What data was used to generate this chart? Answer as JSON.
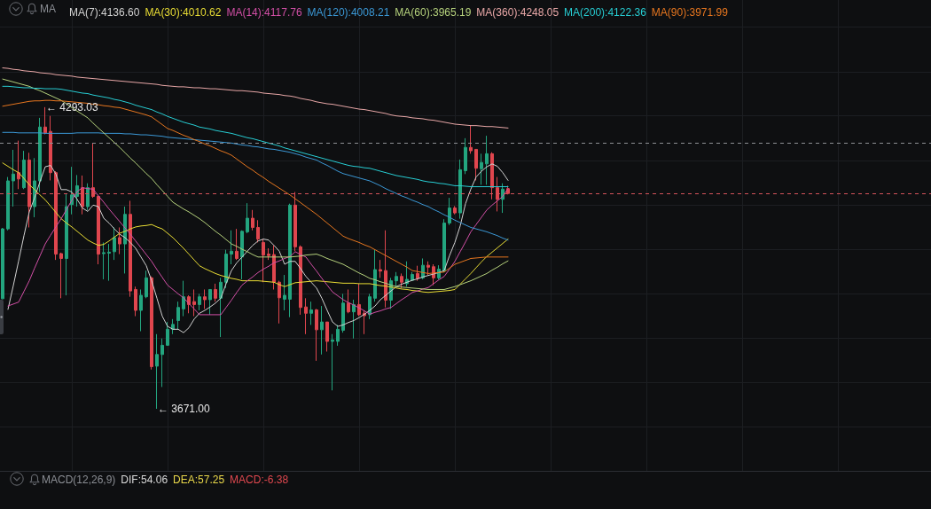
{
  "chart_data": {
    "type": "candlestick",
    "categories": [
      null,
      null,
      null,
      null,
      null,
      null,
      null,
      null,
      null,
      null,
      null,
      null,
      null,
      null,
      null,
      null,
      null,
      null,
      null,
      null,
      null,
      null,
      null,
      null,
      null,
      null,
      null,
      null,
      null,
      null,
      null,
      null,
      null,
      null,
      null,
      null,
      null,
      null,
      null,
      null,
      null,
      null,
      null,
      null,
      null,
      null,
      null,
      null,
      null,
      null,
      null,
      null,
      null,
      null,
      null,
      null,
      null,
      null,
      null,
      null,
      null,
      null,
      null,
      null,
      null,
      null,
      null,
      null,
      null,
      null,
      null,
      null,
      null,
      null,
      null,
      null,
      null,
      null,
      null,
      null,
      null,
      null,
      null,
      null,
      null,
      null,
      null,
      null,
      null,
      null,
      null,
      null,
      null,
      null,
      null,
      null
    ],
    "ohlc": [
      [
        3898,
        4044,
        3897,
        4042
      ],
      [
        4042,
        4149,
        4039,
        4141
      ],
      [
        4141,
        4205,
        4088,
        4155
      ],
      [
        4158,
        4224,
        4124,
        4145
      ],
      [
        4127,
        4203,
        4124,
        4184
      ],
      [
        4184,
        4199,
        4045,
        4088
      ],
      [
        4088,
        4188,
        4066,
        4141
      ],
      [
        4141,
        4271,
        4118,
        4252
      ],
      [
        4252,
        4293.03,
        4237,
        4240
      ],
      [
        4243,
        4275,
        4142,
        4158
      ],
      [
        4158,
        4161,
        3978,
        3990
      ],
      [
        3991,
        3993,
        3899,
        3981
      ],
      [
        3981,
        4115,
        3905,
        4088
      ],
      [
        4092,
        4170,
        4072,
        4112
      ],
      [
        4109,
        4153,
        4088,
        4131
      ],
      [
        4127,
        4152,
        4072,
        4088
      ],
      [
        4088,
        4136,
        4081,
        4127
      ],
      [
        4127,
        4219,
        4106,
        4109
      ],
      [
        4109,
        4112,
        3969,
        3990
      ],
      [
        3991,
        4014,
        3938,
        3993
      ],
      [
        3992,
        4011,
        3935,
        3994
      ],
      [
        3995,
        4045,
        3978,
        4024
      ],
      [
        4024,
        4045,
        3990,
        4011
      ],
      [
        4011,
        4088,
        3950,
        4072
      ],
      [
        4072,
        4100,
        3902,
        3914
      ],
      [
        3917,
        3923,
        3862,
        3874
      ],
      [
        3874,
        3917,
        3831,
        3905
      ],
      [
        3902,
        3956,
        3899,
        3941
      ],
      [
        3941,
        3944,
        3752,
        3758
      ],
      [
        3759,
        3825,
        3671.0,
        3783
      ],
      [
        3783,
        3816,
        3716,
        3802
      ],
      [
        3802,
        3850,
        3801,
        3835
      ],
      [
        3835,
        3856,
        3825,
        3845
      ],
      [
        3853,
        3892,
        3835,
        3880
      ],
      [
        3877,
        3935,
        3862,
        3902
      ],
      [
        3902,
        3905,
        3868,
        3886
      ],
      [
        3892,
        3917,
        3862,
        3886
      ],
      [
        3886,
        3908,
        3874,
        3902
      ],
      [
        3902,
        3917,
        3877,
        3896
      ],
      [
        3896,
        3917,
        3865,
        3917
      ],
      [
        3917,
        3929,
        3892,
        3899
      ],
      [
        3899,
        3941,
        3819,
        3932
      ],
      [
        3932,
        3999,
        3920,
        3990
      ],
      [
        3990,
        4039,
        3969,
        3996
      ],
      [
        3996,
        4042,
        3978,
        3981
      ],
      [
        3984,
        4039,
        3938,
        4037
      ],
      [
        4036,
        4095,
        4033,
        4064
      ],
      [
        4064,
        4081,
        4039,
        4045
      ],
      [
        4045,
        4060,
        4014,
        4021
      ],
      [
        4014,
        4021,
        3932,
        3988
      ],
      [
        3990,
        4002,
        3978,
        3987
      ],
      [
        3989,
        4008,
        3917,
        3932
      ],
      [
        3932,
        3935,
        3847,
        3900
      ],
      [
        3897,
        3947,
        3874,
        3905
      ],
      [
        3897,
        4094,
        3860,
        4091
      ],
      [
        4091,
        4118,
        3996,
        4005
      ],
      [
        4005,
        4008,
        3865,
        3880
      ],
      [
        3881,
        3899,
        3825,
        3868
      ],
      [
        3868,
        3892,
        3844,
        3875
      ],
      [
        3875,
        3877,
        3770,
        3834
      ],
      [
        3834,
        3883,
        3783,
        3850
      ],
      [
        3850,
        3850,
        3789,
        3810
      ],
      [
        3810,
        3825,
        3709,
        3813
      ],
      [
        3810,
        3844,
        3801,
        3835
      ],
      [
        3833,
        3908,
        3828,
        3889
      ],
      [
        3889,
        3917,
        3868,
        3871
      ],
      [
        3871,
        3896,
        3816,
        3886
      ],
      [
        3886,
        3929,
        3862,
        3865
      ],
      [
        3868,
        3874,
        3825,
        3863
      ],
      [
        3865,
        3908,
        3856,
        3902
      ],
      [
        3899,
        3999,
        3892,
        3958
      ],
      [
        3958,
        3978,
        3941,
        3955
      ],
      [
        3956,
        4039,
        3880,
        3895
      ],
      [
        3895,
        3941,
        3877,
        3935
      ],
      [
        3935,
        3953,
        3923,
        3944
      ],
      [
        3944,
        3950,
        3920,
        3932
      ],
      [
        3929,
        3975,
        3923,
        3938
      ],
      [
        3936,
        3953,
        3935,
        3948
      ],
      [
        3950,
        3966,
        3935,
        3940
      ],
      [
        3941,
        3981,
        3938,
        3967
      ],
      [
        3967,
        3975,
        3947,
        3963
      ],
      [
        3964,
        3969,
        3926,
        3941
      ],
      [
        3941,
        3967,
        3938,
        3959
      ],
      [
        3956,
        4062,
        3953,
        4054
      ],
      [
        4054,
        4106,
        4050,
        4085
      ],
      [
        4085,
        4089,
        4072,
        4075
      ],
      [
        4075,
        4185,
        4063,
        4164
      ],
      [
        4162,
        4229,
        4155,
        4210
      ],
      [
        4210,
        4255,
        4197,
        4203
      ],
      [
        4206,
        4206,
        4142,
        4167
      ],
      [
        4166,
        4197,
        4133,
        4179
      ],
      [
        4176,
        4234,
        4133,
        4197
      ],
      [
        4197,
        4200,
        4103,
        4127
      ],
      [
        4127,
        4149,
        4078,
        4103
      ],
      [
        4103,
        4136,
        4075,
        4124
      ],
      [
        4125,
        4131,
        4113,
        4115
      ]
    ],
    "colors": [
      "#23a57f",
      "#23a57f",
      "#23a57f",
      "#e0464e",
      "#23a57f",
      "#e0464e",
      "#23a57f",
      "#23a57f",
      "#e0464e",
      "#e0464e",
      "#e0464e",
      "#e0464e",
      "#23a57f",
      "#23a57f",
      "#23a57f",
      "#e0464e",
      "#23a57f",
      "#e0464e",
      "#e0464e",
      "#23a57f",
      "#23a57f",
      "#23a57f",
      "#e0464e",
      "#23a57f",
      "#e0464e",
      "#e0464e",
      "#23a57f",
      "#23a57f",
      "#e0464e",
      "#23a57f",
      "#23a57f",
      "#23a57f",
      "#23a57f",
      "#23a57f",
      "#23a57f",
      "#e0464e",
      "#e0464e",
      "#23a57f",
      "#e0464e",
      "#23a57f",
      "#e0464e",
      "#23a57f",
      "#23a57f",
      "#23a57f",
      "#e0464e",
      "#23a57f",
      "#23a57f",
      "#e0464e",
      "#e0464e",
      "#e0464e",
      "#e0464e",
      "#e0464e",
      "#e0464e",
      "#23a57f",
      "#23a57f",
      "#e0464e",
      "#e0464e",
      "#e0464e",
      "#23a57f",
      "#e0464e",
      "#23a57f",
      "#e0464e",
      "#23a57f",
      "#23a57f",
      "#23a57f",
      "#e0464e",
      "#23a57f",
      "#e0464e",
      "#e0464e",
      "#23a57f",
      "#23a57f",
      "#e0464e",
      "#e0464e",
      "#23a57f",
      "#23a57f",
      "#e0464e",
      "#23a57f",
      "#23a57f",
      "#e0464e",
      "#23a57f",
      "#e0464e",
      "#e0464e",
      "#23a57f",
      "#23a57f",
      "#23a57f",
      "#e0464e",
      "#23a57f",
      "#23a57f",
      "#e0464e",
      "#e0464e",
      "#23a57f",
      "#23a57f",
      "#e0464e",
      "#e0464e",
      "#23a57f",
      "#e0464e"
    ],
    "series": [
      {
        "type": "line",
        "name": "MA(7):4136.60",
        "color": "#d2d2d2",
        "values": [
          null,
          3876,
          3925,
          3976,
          4028,
          4077,
          4106,
          4139,
          4170,
          4173,
          4155,
          4123,
          4123,
          4118,
          4103,
          4085,
          4078,
          4091,
          4088,
          4064,
          4054,
          4042,
          4031,
          4024,
          4014,
          4002,
          3984,
          3966,
          3935,
          3899,
          3862,
          3841,
          3835,
          3835,
          3828,
          3838,
          3856,
          3868,
          3874,
          3881,
          3889,
          3899,
          3929,
          3956,
          3972,
          3984,
          3996,
          4008,
          4017,
          4021,
          4019,
          4008,
          3996,
          3969,
          3975,
          3975,
          3960,
          3944,
          3932,
          3920,
          3899,
          3874,
          3850,
          3841,
          3844,
          3849,
          3853,
          3859,
          3866,
          3874,
          3883,
          3896,
          3905,
          3914,
          3923,
          3928,
          3932,
          3936,
          3939,
          3943,
          3946,
          3949,
          3952,
          3956,
          3987,
          4014,
          4048,
          4094,
          4124,
          4149,
          4161,
          4170,
          4176,
          4171,
          4158,
          4142
        ]
      },
      {
        "type": "line",
        "name": "MA(30):4010.62",
        "color": "#e8dc34",
        "values": [
          4178,
          4171,
          4164,
          4158,
          4146,
          4133,
          4123,
          4112,
          4102,
          4089,
          4076,
          4063,
          4054,
          4046,
          4037,
          4028,
          4019,
          4013,
          4008,
          4010,
          4017,
          4025,
          4033,
          4037,
          4042,
          4046,
          4048,
          4049,
          4051,
          4046,
          4042,
          4033,
          4024,
          4013,
          4002,
          3990,
          3978,
          3966,
          3960,
          3955,
          3950,
          3946,
          3943,
          3940,
          3938,
          3935,
          3935,
          3935,
          3935,
          3934,
          3933,
          3932,
          3927,
          3923,
          3927,
          3931,
          3932,
          3933,
          3934,
          3935,
          3934,
          3933,
          3932,
          3931,
          3930,
          3930,
          3930,
          3929,
          3929,
          3929,
          3927,
          3925,
          3924,
          3922,
          3920,
          3918,
          3917,
          3915,
          3914,
          3912,
          3911,
          3912,
          3913,
          3914,
          3915,
          3917,
          3928,
          3939,
          3950,
          3962,
          3974,
          3985,
          3994,
          4003,
          4012,
          4021
        ]
      },
      {
        "type": "line",
        "name": "MA(14):4117.76",
        "color": "#d24fa6",
        "values": [
          null,
          3883,
          3887,
          3891,
          3913,
          3935,
          3961,
          3986,
          4011,
          4029,
          4046,
          4063,
          4082,
          4101,
          4119,
          4127,
          4125,
          4124,
          4110,
          4097,
          4083,
          4070,
          4057,
          4044,
          4031,
          4017,
          4003,
          3989,
          3975,
          3958,
          3942,
          3926,
          3917,
          3908,
          3900,
          3888,
          3877,
          3865,
          3865,
          3865,
          3865,
          3865,
          3880,
          3895,
          3911,
          3926,
          3935,
          3943,
          3952,
          3959,
          3965,
          3972,
          3976,
          3981,
          3985,
          3995,
          3989,
          3984,
          3969,
          3955,
          3940,
          3926,
          3912,
          3904,
          3896,
          3890,
          3885,
          3879,
          3873,
          3866,
          3870,
          3873,
          3877,
          3880,
          3888,
          3896,
          3903,
          3911,
          3914,
          3918,
          3921,
          3929,
          3937,
          3944,
          3959,
          3975,
          3995,
          4015,
          4036,
          4051,
          4066,
          4081,
          4091,
          4100,
          4109,
          4125
        ]
      },
      {
        "type": "line",
        "name": "MA(120):4008.21",
        "color": "#3b98d6",
        "values": [
          4241,
          4241,
          4241,
          4240,
          4240,
          4240,
          4240,
          4240,
          4239,
          4239,
          4239,
          4239,
          4239,
          4239,
          4240,
          4240,
          4240,
          4240,
          4240,
          4239,
          4239,
          4239,
          4239,
          4238,
          4238,
          4237,
          4236,
          4236,
          4235,
          4234,
          4233,
          4231,
          4230,
          4229,
          4228,
          4227,
          4226,
          4225,
          4224,
          4223,
          4222,
          4221,
          4220,
          4219,
          4217,
          4215,
          4214,
          4212,
          4211,
          4209,
          4207,
          4206,
          4204,
          4202,
          4200,
          4197,
          4194,
          4190,
          4187,
          4184,
          4178,
          4173,
          4167,
          4161,
          4156,
          4153,
          4150,
          4147,
          4144,
          4141,
          4136,
          4131,
          4125,
          4120,
          4115,
          4110,
          4106,
          4101,
          4097,
          4092,
          4088,
          4082,
          4077,
          4071,
          4066,
          4060,
          4055,
          4050,
          4045,
          4042,
          4039,
          4036,
          4032,
          4028,
          4023,
          4019
        ]
      },
      {
        "type": "line",
        "name": "MA(60):3965.19",
        "color": "#b5d17c",
        "values": [
          4351,
          4348,
          4345,
          4342,
          4339,
          4336,
          4331,
          4327,
          4322,
          4317,
          4312,
          4307,
          4300,
          4292,
          4285,
          4278,
          4271,
          4260,
          4250,
          4240,
          4230,
          4220,
          4210,
          4199,
          4188,
          4178,
          4167,
          4156,
          4146,
          4133,
          4121,
          4109,
          4097,
          4090,
          4083,
          4077,
          4070,
          4063,
          4055,
          4046,
          4037,
          4029,
          4020,
          4011,
          4006,
          4000,
          3995,
          3989,
          3984,
          3984,
          3984,
          3984,
          3984,
          3984,
          3984,
          3985,
          3986,
          3988,
          3989,
          3990,
          3986,
          3981,
          3977,
          3973,
          3969,
          3963,
          3957,
          3951,
          3946,
          3940,
          3937,
          3933,
          3930,
          3926,
          3923,
          3922,
          3921,
          3920,
          3919,
          3918,
          3917,
          3917,
          3917,
          3917,
          3920,
          3923,
          3927,
          3931,
          3935,
          3940,
          3945,
          3950,
          3957,
          3963,
          3970,
          3976
        ]
      },
      {
        "type": "line",
        "name": "MA(360):4248.05",
        "color": "#e8a7a7",
        "values": [
          4374,
          4373,
          4371,
          4370,
          4368,
          4367,
          4366,
          4364,
          4363,
          4362,
          4360,
          4359,
          4358,
          4357,
          4355,
          4354,
          4353,
          4352,
          4351,
          4350,
          4349,
          4348,
          4347,
          4346,
          4345,
          4344,
          4343,
          4342,
          4341,
          4340,
          4338,
          4337,
          4336,
          4335,
          4335,
          4334,
          4333,
          4333,
          4332,
          4331,
          4331,
          4330,
          4329,
          4328,
          4327,
          4327,
          4326,
          4325,
          4324,
          4322,
          4321,
          4320,
          4319,
          4317,
          4316,
          4314,
          4311,
          4309,
          4307,
          4304,
          4302,
          4300,
          4299,
          4297,
          4295,
          4293,
          4291,
          4289,
          4288,
          4286,
          4284,
          4282,
          4280,
          4277,
          4275,
          4274,
          4273,
          4271,
          4270,
          4269,
          4267,
          4266,
          4264,
          4262,
          4260,
          4258,
          4257,
          4256,
          4255,
          4255,
          4254,
          4253,
          4253,
          4252,
          4251,
          4250
        ]
      },
      {
        "type": "line",
        "name": "MA(200):4122.36",
        "color": "#27cdd3",
        "values": [
          4336,
          4336,
          4335,
          4334,
          4333,
          4333,
          4332,
          4332,
          4331,
          4331,
          4331,
          4330,
          4328,
          4326,
          4324,
          4322,
          4321,
          4318,
          4316,
          4314,
          4312,
          4309,
          4307,
          4304,
          4301,
          4297,
          4294,
          4291,
          4288,
          4283,
          4279,
          4274,
          4270,
          4266,
          4262,
          4259,
          4256,
          4252,
          4250,
          4248,
          4245,
          4243,
          4241,
          4239,
          4236,
          4233,
          4230,
          4228,
          4225,
          4222,
          4219,
          4216,
          4213,
          4209,
          4206,
          4203,
          4200,
          4197,
          4194,
          4191,
          4188,
          4185,
          4182,
          4179,
          4176,
          4173,
          4171,
          4170,
          4168,
          4167,
          4164,
          4161,
          4158,
          4155,
          4152,
          4150,
          4148,
          4146,
          4144,
          4141,
          4139,
          4138,
          4136,
          4135,
          4133,
          4131,
          4131,
          4130,
          4129,
          4129,
          4129,
          4129,
          4129,
          4129,
          4129,
          4129
        ]
      },
      {
        "type": "line",
        "name": "MA(90):3971.99",
        "color": "#e6761f",
        "values": [
          4295,
          4297,
          4299,
          4301,
          4303,
          4305,
          4306,
          4306,
          4307,
          4307,
          4306,
          4306,
          4305,
          4304,
          4303,
          4302,
          4301,
          4299,
          4298,
          4296,
          4295,
          4293,
          4292,
          4289,
          4286,
          4283,
          4280,
          4277,
          4273,
          4265,
          4257,
          4249,
          4245,
          4240,
          4235,
          4231,
          4226,
          4222,
          4217,
          4213,
          4208,
          4203,
          4199,
          4194,
          4186,
          4178,
          4170,
          4163,
          4155,
          4148,
          4140,
          4133,
          4126,
          4119,
          4112,
          4104,
          4096,
          4088,
          4080,
          4072,
          4063,
          4054,
          4045,
          4036,
          4027,
          4022,
          4018,
          4014,
          4009,
          4005,
          3999,
          3993,
          3987,
          3981,
          3975,
          3969,
          3963,
          3956,
          3954,
          3952,
          3950,
          3951,
          3952,
          3953,
          3961,
          3969,
          3973,
          3977,
          3981,
          3982,
          3983,
          3984,
          3984,
          3984,
          3984,
          3984
        ]
      }
    ],
    "ylim": [
      3543,
      4514
    ],
    "yticks": [
      4458,
      4366,
      4275,
      4183,
      4092,
      4000,
      3909,
      3817,
      3726,
      3634
    ],
    "tick_labels": false,
    "grid": true,
    "legend": "top",
    "legend_title": "MA",
    "ref_lines": [
      {
        "axis": "y",
        "value": 4220,
        "color": "#8e9094",
        "line_style": "dashed"
      },
      {
        "axis": "y",
        "value": 4115,
        "color": "#d4535a",
        "line_style": "dashed"
      }
    ],
    "annotations": [
      {
        "text": "← 4293.03",
        "y": 4293.03
      },
      "← 3671.00",
      "MACD(12,26,9)",
      "DIF:54.06",
      "DEA:57.25",
      "MACD:-6.38"
    ]
  }
}
